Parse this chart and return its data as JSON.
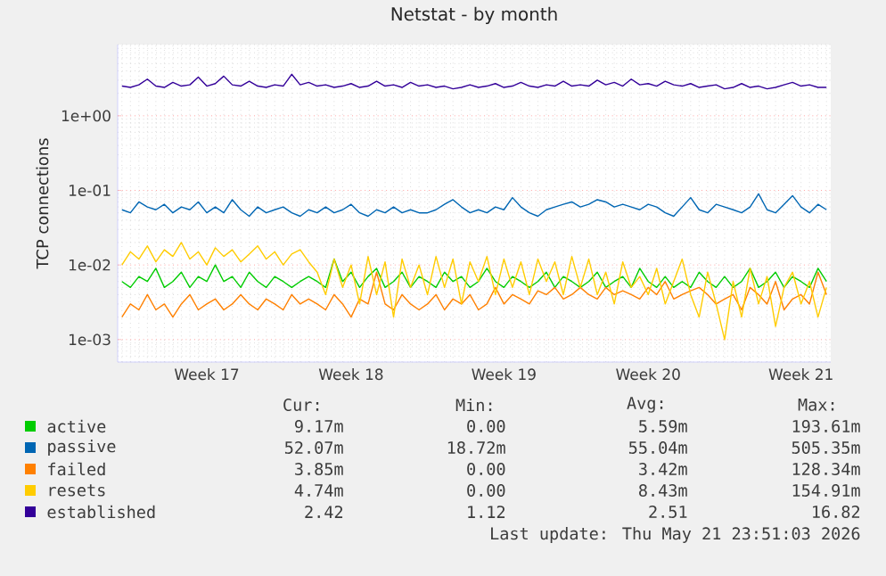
{
  "chart_data": {
    "type": "line",
    "title": "Netstat - by month",
    "ylabel": "TCP connections",
    "categories": [
      null,
      null,
      null,
      null,
      null,
      null,
      null,
      null,
      null,
      null,
      "Week 17",
      null,
      null,
      null,
      null,
      null,
      null,
      null,
      null,
      null,
      null,
      null,
      null,
      null,
      null,
      null,
      null,
      "Week 18",
      null,
      null,
      null,
      null,
      null,
      null,
      null,
      null,
      null,
      null,
      null,
      null,
      null,
      null,
      null,
      null,
      null,
      "Week 19",
      null,
      null,
      null,
      null,
      null,
      null,
      null,
      null,
      null,
      null,
      null,
      null,
      null,
      null,
      null,
      null,
      "Week 20",
      null,
      null,
      null,
      null,
      null,
      null,
      null,
      null,
      null,
      null,
      null,
      null,
      null,
      null,
      null,
      null,
      null,
      "Week 21",
      null,
      null,
      null
    ],
    "ylim": [
      0.0005,
      9
    ],
    "yticks": [
      {
        "value": 0.001,
        "label": "1e-03"
      },
      {
        "value": 0.01,
        "label": "1e-02"
      },
      {
        "value": 0.1,
        "label": "1e-01"
      },
      {
        "value": 1,
        "label": "1e+00"
      }
    ],
    "log": "y",
    "grid": true,
    "legend": "bottom",
    "series": [
      {
        "name": "active",
        "color": "#00cc00",
        "values": [
          0.006,
          0.005,
          0.007,
          0.006,
          0.009,
          0.005,
          0.006,
          0.008,
          0.005,
          0.007,
          0.006,
          0.01,
          0.006,
          0.007,
          0.005,
          0.008,
          0.006,
          0.005,
          0.007,
          0.006,
          0.005,
          0.006,
          0.007,
          0.006,
          0.005,
          0.012,
          0.006,
          0.008,
          0.005,
          0.007,
          0.009,
          0.005,
          0.006,
          0.008,
          0.005,
          0.007,
          0.006,
          0.005,
          0.008,
          0.006,
          0.007,
          0.005,
          0.006,
          0.009,
          0.006,
          0.005,
          0.007,
          0.006,
          0.005,
          0.006,
          0.008,
          0.005,
          0.007,
          0.006,
          0.005,
          0.006,
          0.008,
          0.005,
          0.006,
          0.007,
          0.005,
          0.009,
          0.006,
          0.005,
          0.007,
          0.005,
          0.006,
          0.005,
          0.008,
          0.006,
          0.005,
          0.007,
          0.005,
          0.006,
          0.009,
          0.005,
          0.006,
          0.008,
          0.005,
          0.007,
          0.006,
          0.005,
          0.009,
          0.006
        ]
      },
      {
        "name": "passive",
        "color": "#0066b3",
        "values": [
          0.055,
          0.05,
          0.07,
          0.06,
          0.055,
          0.065,
          0.05,
          0.06,
          0.055,
          0.07,
          0.05,
          0.06,
          0.05,
          0.075,
          0.055,
          0.045,
          0.06,
          0.05,
          0.055,
          0.06,
          0.05,
          0.045,
          0.055,
          0.05,
          0.06,
          0.05,
          0.055,
          0.065,
          0.05,
          0.045,
          0.055,
          0.05,
          0.06,
          0.05,
          0.055,
          0.05,
          0.05,
          0.055,
          0.065,
          0.075,
          0.06,
          0.05,
          0.055,
          0.05,
          0.06,
          0.055,
          0.08,
          0.06,
          0.05,
          0.045,
          0.055,
          0.06,
          0.065,
          0.07,
          0.06,
          0.065,
          0.075,
          0.07,
          0.06,
          0.065,
          0.06,
          0.055,
          0.065,
          0.06,
          0.05,
          0.045,
          0.06,
          0.08,
          0.055,
          0.05,
          0.065,
          0.06,
          0.055,
          0.05,
          0.06,
          0.09,
          0.055,
          0.05,
          0.065,
          0.085,
          0.06,
          0.05,
          0.065,
          0.055
        ]
      },
      {
        "name": "failed",
        "color": "#ff8000",
        "values": [
          0.002,
          0.003,
          0.0025,
          0.004,
          0.0025,
          0.003,
          0.002,
          0.003,
          0.004,
          0.0025,
          0.003,
          0.0035,
          0.0025,
          0.003,
          0.004,
          0.003,
          0.0025,
          0.0035,
          0.003,
          0.0025,
          0.004,
          0.003,
          0.0035,
          0.003,
          0.0025,
          0.004,
          0.003,
          0.002,
          0.0035,
          0.003,
          0.008,
          0.003,
          0.0025,
          0.004,
          0.003,
          0.0025,
          0.003,
          0.004,
          0.0025,
          0.0035,
          0.003,
          0.004,
          0.0025,
          0.003,
          0.005,
          0.003,
          0.004,
          0.0035,
          0.003,
          0.0045,
          0.004,
          0.005,
          0.0035,
          0.004,
          0.005,
          0.004,
          0.0035,
          0.005,
          0.004,
          0.0045,
          0.004,
          0.0035,
          0.005,
          0.004,
          0.006,
          0.0035,
          0.004,
          0.0045,
          0.005,
          0.004,
          0.003,
          0.0035,
          0.004,
          0.0025,
          0.005,
          0.004,
          0.003,
          0.006,
          0.0025,
          0.0035,
          0.004,
          0.003,
          0.008,
          0.004
        ]
      },
      {
        "name": "resets",
        "color": "#ffcc00",
        "values": [
          0.01,
          0.015,
          0.012,
          0.018,
          0.011,
          0.016,
          0.013,
          0.02,
          0.012,
          0.015,
          0.01,
          0.017,
          0.013,
          0.016,
          0.011,
          0.014,
          0.018,
          0.012,
          0.015,
          0.01,
          0.014,
          0.016,
          0.011,
          0.008,
          0.004,
          0.012,
          0.005,
          0.01,
          0.003,
          0.013,
          0.004,
          0.011,
          0.002,
          0.012,
          0.005,
          0.01,
          0.004,
          0.013,
          0.005,
          0.012,
          0.003,
          0.011,
          0.006,
          0.013,
          0.004,
          0.012,
          0.005,
          0.011,
          0.004,
          0.012,
          0.006,
          0.011,
          0.004,
          0.013,
          0.005,
          0.012,
          0.004,
          0.008,
          0.003,
          0.011,
          0.005,
          0.007,
          0.004,
          0.009,
          0.003,
          0.006,
          0.012,
          0.004,
          0.002,
          0.008,
          0.003,
          0.001,
          0.006,
          0.002,
          0.009,
          0.003,
          0.007,
          0.0015,
          0.005,
          0.008,
          0.003,
          0.006,
          0.002,
          0.005
        ]
      },
      {
        "name": "established",
        "color": "#330099",
        "values": [
          2.5,
          2.4,
          2.6,
          3.1,
          2.5,
          2.4,
          2.8,
          2.5,
          2.6,
          3.3,
          2.5,
          2.7,
          3.4,
          2.6,
          2.5,
          2.9,
          2.5,
          2.4,
          2.6,
          2.5,
          3.6,
          2.6,
          2.8,
          2.5,
          2.6,
          2.4,
          2.5,
          2.7,
          2.4,
          2.5,
          2.9,
          2.5,
          2.6,
          2.4,
          2.8,
          2.5,
          2.6,
          2.4,
          2.5,
          2.3,
          2.4,
          2.6,
          2.4,
          2.5,
          2.7,
          2.4,
          2.5,
          2.8,
          2.5,
          2.4,
          2.6,
          2.5,
          2.9,
          2.5,
          2.6,
          2.5,
          3.0,
          2.6,
          2.8,
          2.5,
          3.1,
          2.6,
          2.7,
          2.5,
          2.9,
          2.6,
          2.5,
          2.7,
          2.4,
          2.5,
          2.6,
          2.3,
          2.4,
          2.7,
          2.4,
          2.5,
          2.3,
          2.4,
          2.6,
          2.8,
          2.5,
          2.6,
          2.4,
          2.4
        ]
      }
    ],
    "annotations": [
      "Cur:",
      "Min:",
      "Avg:",
      "Max:",
      "9.17m",
      "0.00",
      "5.59m",
      "193.61m",
      "52.07m",
      "18.72m",
      "55.04m",
      "505.35m",
      "3.85m",
      "0.00",
      "3.42m",
      "128.34m",
      "4.74m",
      "0.00",
      "8.43m",
      "154.91m",
      "2.42",
      "1.12",
      "2.51",
      "16.82",
      "Last update: Thu May 21 23:51:03 2026"
    ]
  }
}
